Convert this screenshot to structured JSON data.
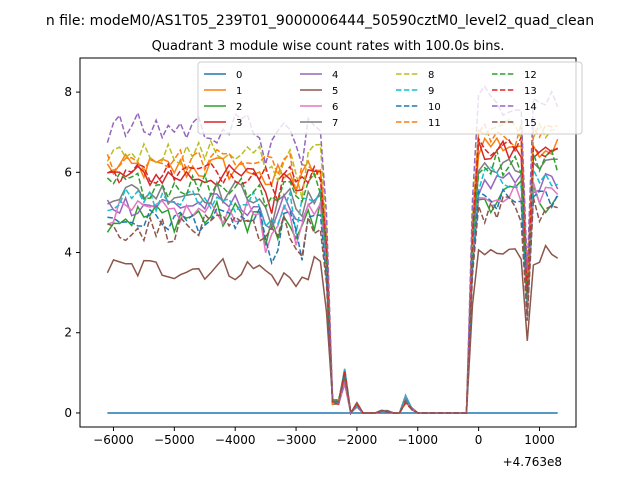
{
  "chart_data": {
    "type": "line",
    "suptitle": "n file: modeM0/AS1T05_239T01_9000006444_50590cztM0_level2_quad_clean",
    "title": "Quadrant 3 module wise count rates with 100.0s bins.",
    "xlabel": "",
    "ylabel": "",
    "x_offset_label": "+4.763e8",
    "xlim": [
      -6550,
      1600
    ],
    "ylim": [
      -0.35,
      8.85
    ],
    "x_ticks": [
      -6000,
      -5000,
      -4000,
      -3000,
      -2000,
      -1000,
      0,
      1000
    ],
    "x_tick_labels": [
      "−6000",
      "−5000",
      "−4000",
      "−3000",
      "−2000",
      "−1000",
      "0",
      "1000"
    ],
    "y_ticks": [
      0,
      2,
      4,
      6,
      8
    ],
    "y_tick_labels": [
      "0",
      "2",
      "4",
      "6",
      "8"
    ],
    "grid": false,
    "legend": {
      "placement": "upper-center",
      "columns": 4
    },
    "series": [
      {
        "name": "0",
        "color": "#1f77b4",
        "dashed": false,
        "level": 0.0,
        "variability": 0.0
      },
      {
        "name": "1",
        "color": "#ff7f0e",
        "dashed": false,
        "level": 6.1,
        "variability": 0.35
      },
      {
        "name": "2",
        "color": "#2ca02c",
        "dashed": false,
        "level": 4.9,
        "variability": 0.4
      },
      {
        "name": "3",
        "color": "#d62728",
        "dashed": false,
        "level": 5.9,
        "variability": 0.3
      },
      {
        "name": "4",
        "color": "#9467bd",
        "dashed": false,
        "level": 5.2,
        "variability": 0.3
      },
      {
        "name": "5",
        "color": "#8c564b",
        "dashed": false,
        "level": 3.6,
        "variability": 0.3
      },
      {
        "name": "6",
        "color": "#e377c2",
        "dashed": false,
        "level": 5.0,
        "variability": 0.3
      },
      {
        "name": "7",
        "color": "#7f7f7f",
        "dashed": false,
        "level": 5.5,
        "variability": 0.3
      },
      {
        "name": "8",
        "color": "#bcbd22",
        "dashed": true,
        "level": 6.5,
        "variability": 0.3
      },
      {
        "name": "9",
        "color": "#17becf",
        "dashed": true,
        "level": 5.3,
        "variability": 0.3
      },
      {
        "name": "10",
        "color": "#1f77b4",
        "dashed": true,
        "level": 4.8,
        "variability": 0.3
      },
      {
        "name": "11",
        "color": "#ff7f0e",
        "dashed": true,
        "level": 6.3,
        "variability": 0.3
      },
      {
        "name": "12",
        "color": "#2ca02c",
        "dashed": true,
        "level": 5.7,
        "variability": 0.35
      },
      {
        "name": "13",
        "color": "#d62728",
        "dashed": true,
        "level": 6.0,
        "variability": 0.3
      },
      {
        "name": "14",
        "color": "#9467bd",
        "dashed": true,
        "level": 7.1,
        "variability": 0.4
      },
      {
        "name": "15",
        "color": "#8c564b",
        "dashed": true,
        "level": 4.6,
        "variability": 0.35
      }
    ]
  }
}
